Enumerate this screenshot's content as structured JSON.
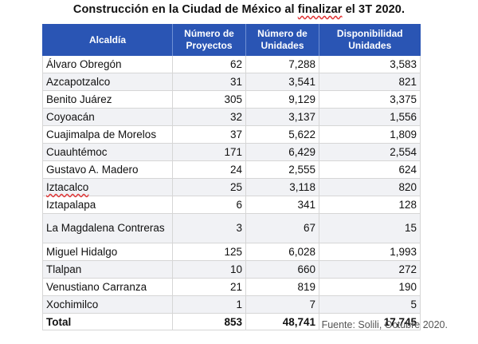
{
  "title_before": "Construcción en la Ciudad de México al ",
  "title_flagged": "finalizar",
  "title_after": " el 3T 2020.",
  "headers": {
    "alcaldia": "Alcaldía",
    "proyectos": "Número de Proyectos",
    "unidades": "Número de Unidades",
    "disponibilidad": "Disponibilidad Unidades"
  },
  "rows": [
    {
      "alcaldia": "Álvaro Obregón",
      "proyectos": "62",
      "unidades": "7,288",
      "disponibilidad": "3,583"
    },
    {
      "alcaldia": "Azcapotzalco",
      "proyectos": "31",
      "unidades": "3,541",
      "disponibilidad": "821"
    },
    {
      "alcaldia": "Benito Juárez",
      "proyectos": "305",
      "unidades": "9,129",
      "disponibilidad": "3,375"
    },
    {
      "alcaldia": "Coyoacán",
      "proyectos": "32",
      "unidades": "3,137",
      "disponibilidad": "1,556"
    },
    {
      "alcaldia": "Cuajimalpa de Morelos",
      "proyectos": "37",
      "unidades": "5,622",
      "disponibilidad": "1,809"
    },
    {
      "alcaldia": "Cuauhtémoc",
      "proyectos": "171",
      "unidades": "6,429",
      "disponibilidad": "2,554"
    },
    {
      "alcaldia": "Gustavo A. Madero",
      "proyectos": "24",
      "unidades": "2,555",
      "disponibilidad": "624"
    },
    {
      "alcaldia": "Iztacalco",
      "proyectos": "25",
      "unidades": "3,118",
      "disponibilidad": "820",
      "flagged": true
    },
    {
      "alcaldia": "Iztapalapa",
      "proyectos": "6",
      "unidades": "341",
      "disponibilidad": "128"
    },
    {
      "alcaldia": "La Magdalena Contreras",
      "proyectos": "3",
      "unidades": "67",
      "disponibilidad": "15",
      "tall": true
    },
    {
      "alcaldia": "Miguel Hidalgo",
      "proyectos": "125",
      "unidades": "6,028",
      "disponibilidad": "1,993"
    },
    {
      "alcaldia": "Tlalpan",
      "proyectos": "10",
      "unidades": "660",
      "disponibilidad": "272"
    },
    {
      "alcaldia": "Venustiano Carranza",
      "proyectos": "21",
      "unidades": "819",
      "disponibilidad": "190"
    },
    {
      "alcaldia": "Xochimilco",
      "proyectos": "1",
      "unidades": "7",
      "disponibilidad": "5"
    }
  ],
  "total": {
    "label": "Total",
    "proyectos": "853",
    "unidades": "48,741",
    "disponibilidad": "17,745"
  },
  "source": "Fuente: Solili, Octubre 2020.",
  "colors": {
    "header_bg": "#2a55b4",
    "header_text": "#ffffff",
    "row_alt_bg": "#f1f2f5",
    "spellcheck_underline": "#e03030"
  }
}
